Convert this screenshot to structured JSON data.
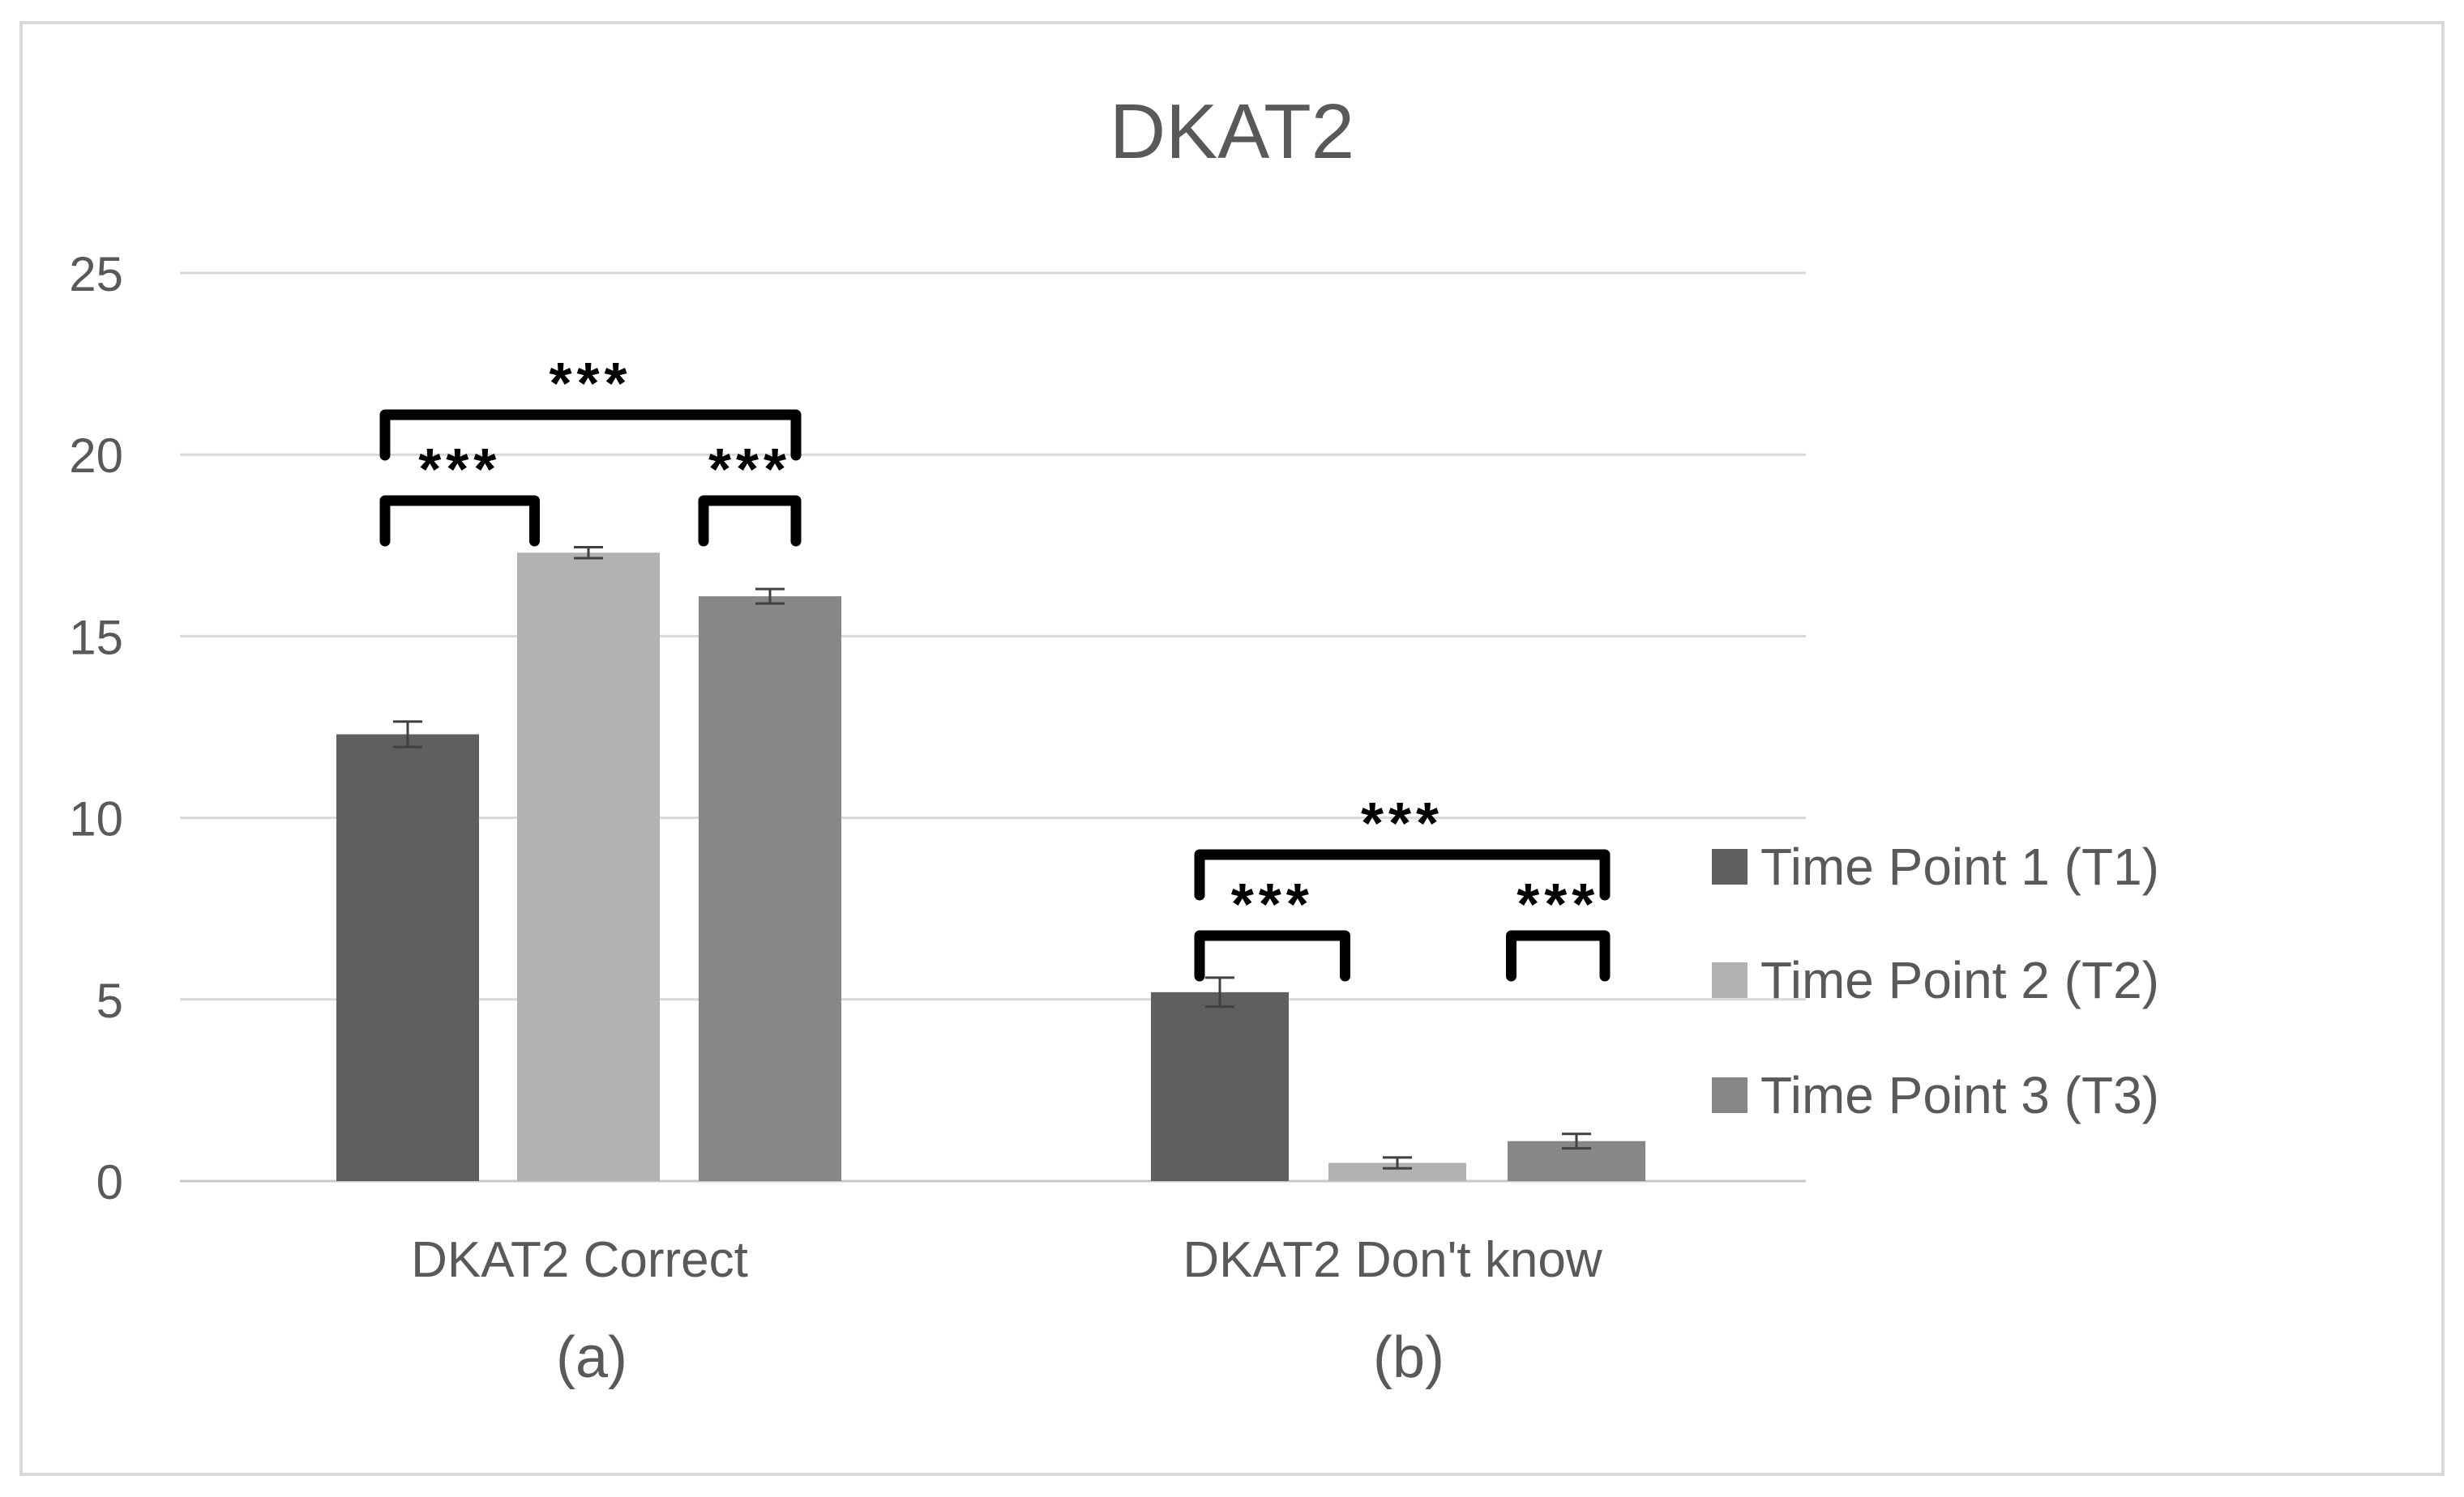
{
  "chart_data": {
    "type": "bar",
    "title": "DKAT2",
    "xlabel": "",
    "ylabel": "",
    "ylim": [
      0,
      25
    ],
    "yticks": [
      0,
      5,
      10,
      15,
      20,
      25
    ],
    "grid": true,
    "legend_position": "right",
    "categories": [
      "DKAT2 Correct",
      "DKAT2 Don't know"
    ],
    "panel_labels": [
      "(a)",
      "(b)"
    ],
    "series": [
      {
        "name": "Time Point 1 (T1)",
        "color": "#5f5f5f",
        "values": [
          12.3,
          5.2
        ],
        "errors": [
          0.35,
          0.4
        ]
      },
      {
        "name": "Time Point 2 (T2)",
        "color": "#b2b2b2",
        "values": [
          17.3,
          0.5
        ],
        "errors": [
          0.15,
          0.15
        ]
      },
      {
        "name": "Time Point 3 (T3)",
        "color": "#878787",
        "values": [
          16.1,
          1.1
        ],
        "errors": [
          0.2,
          0.2
        ]
      }
    ],
    "significance": [
      {
        "category": 0,
        "from": 0,
        "to": 2,
        "level": 1,
        "label": "***"
      },
      {
        "category": 0,
        "from": 0,
        "to": 1,
        "level": 0,
        "label": "***"
      },
      {
        "category": 0,
        "from": 1,
        "to": 2,
        "level": 0,
        "label": "***"
      },
      {
        "category": 1,
        "from": 0,
        "to": 2,
        "level": 1,
        "label": "***"
      },
      {
        "category": 1,
        "from": 0,
        "to": 1,
        "level": 0,
        "label": "***"
      },
      {
        "category": 1,
        "from": 1,
        "to": 2,
        "level": 0,
        "label": "***"
      }
    ]
  }
}
